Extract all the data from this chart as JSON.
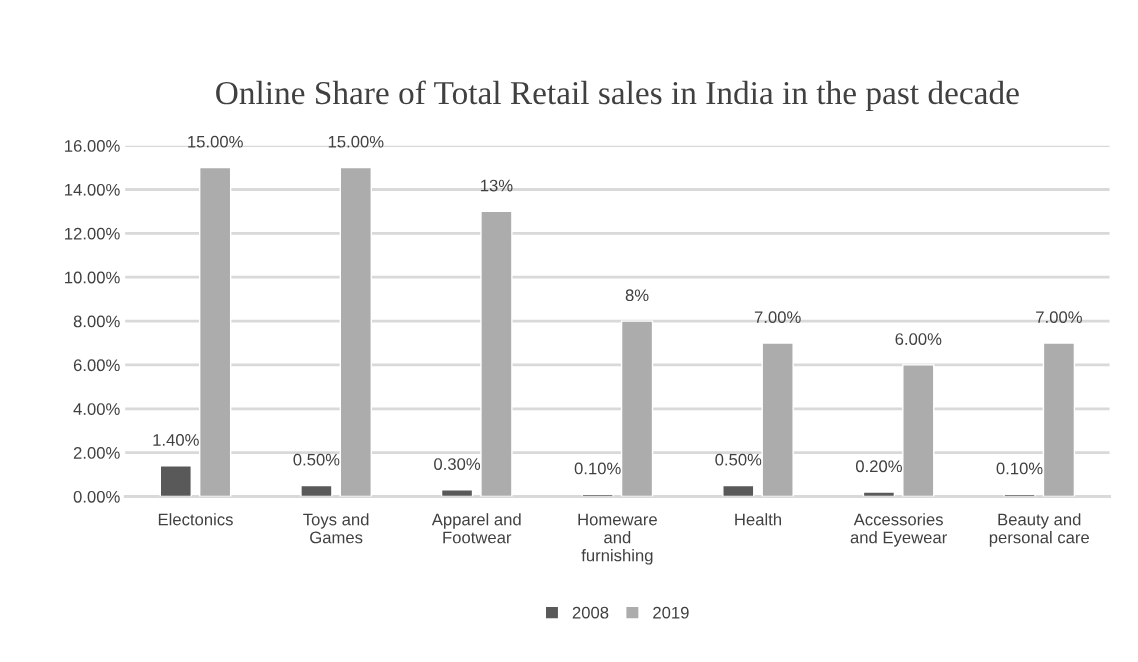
{
  "chart_data": {
    "type": "bar",
    "title": "Online Share of Total Retail sales in India in the past decade",
    "categories": [
      "Electonics",
      "Toys and\nGames",
      "Apparel and\nFootwear",
      "Homeware\nand\nfurnishing",
      "Health",
      "Accessories\nand Eyewear",
      "Beauty and\npersonal care"
    ],
    "series": [
      {
        "name": "2008",
        "color": "#595959",
        "values": [
          1.4,
          0.5,
          0.3,
          0.1,
          0.5,
          0.2,
          0.1
        ],
        "value_labels": [
          "1.40%",
          "0.50%",
          "0.30%",
          "0.10%",
          "0.50%",
          "0.20%",
          "0.10%"
        ]
      },
      {
        "name": "2019",
        "color": "#acacac",
        "values": [
          15,
          15,
          13,
          8,
          7,
          6,
          7
        ],
        "value_labels": [
          "15.00%",
          "15.00%",
          "13%",
          "8%",
          "7.00%",
          "6.00%",
          "7.00%"
        ]
      }
    ],
    "ylim": [
      0,
      16
    ],
    "yticks": [
      {
        "value": 0,
        "label": "0.00%"
      },
      {
        "value": 2,
        "label": "2.00%"
      },
      {
        "value": 4,
        "label": "4.00%"
      },
      {
        "value": 6,
        "label": "6.00%"
      },
      {
        "value": 8,
        "label": "8.00%"
      },
      {
        "value": 10,
        "label": "10.00%"
      },
      {
        "value": 12,
        "label": "12.00%"
      },
      {
        "value": 14,
        "label": "14.00%"
      },
      {
        "value": 16,
        "label": "16.00%"
      }
    ],
    "grid": "y",
    "legend": "bottom"
  }
}
